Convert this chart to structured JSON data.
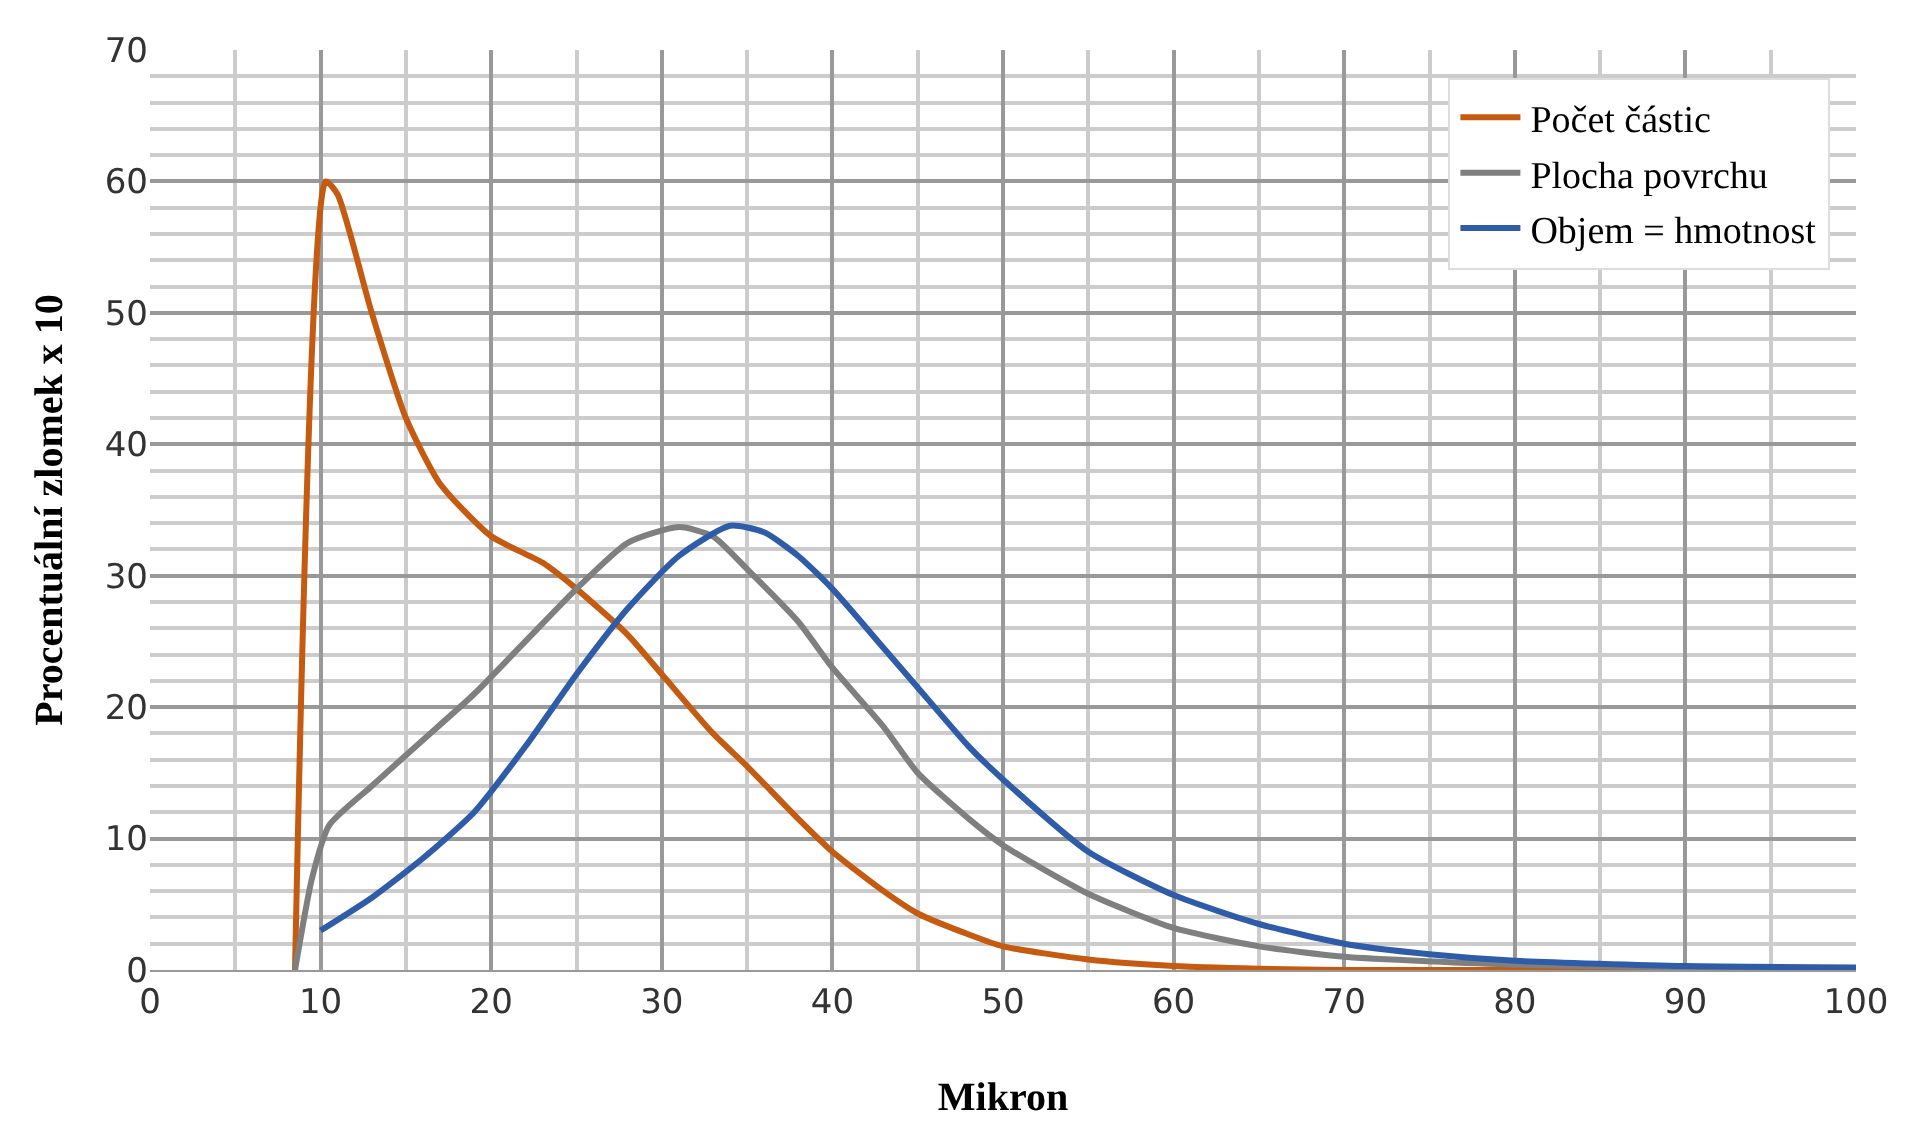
{
  "chart_data": {
    "type": "line",
    "xlabel": "Mikron",
    "ylabel": "Procentuální zlomek x 10",
    "xlim": [
      0,
      100
    ],
    "xticks": [
      0,
      10,
      20,
      30,
      40,
      50,
      60,
      70,
      80,
      90,
      100
    ],
    "ylim": [
      0,
      70
    ],
    "yticks": [
      0,
      10,
      20,
      30,
      40,
      50,
      60,
      70
    ],
    "grid": true,
    "legend": "top right",
    "marker": "none",
    "line_style": "solid",
    "series": [
      {
        "name": "Počet částic",
        "color": "#c55a11",
        "x": [
          8.5,
          10.3,
          11,
          13,
          15,
          17,
          20,
          23,
          25,
          28,
          30,
          33,
          35,
          38,
          40,
          43,
          45,
          48,
          50,
          55,
          60,
          65,
          70,
          80,
          96
        ],
        "values": [
          0,
          60,
          59,
          50,
          42,
          37,
          33,
          31,
          29,
          25.5,
          22.5,
          18,
          15.5,
          11.5,
          9,
          6,
          4.3,
          2.7,
          1.8,
          0.8,
          0.3,
          0.1,
          0,
          0,
          0
        ]
      },
      {
        "name": "Plocha povrchu",
        "color": "#7f7f7f",
        "x": [
          8.5,
          9.5,
          10.5,
          13,
          16,
          19,
          22,
          25,
          28,
          31,
          33,
          35,
          38,
          40,
          43,
          45,
          48,
          50,
          55,
          60,
          65,
          70,
          80,
          90,
          100
        ],
        "values": [
          0,
          7,
          11,
          14,
          17.5,
          21,
          25,
          29,
          32.5,
          33.7,
          33,
          30.5,
          26.5,
          23,
          18.5,
          15,
          11.5,
          9.5,
          5.8,
          3.2,
          1.8,
          1,
          0.4,
          0.2,
          0.1
        ]
      },
      {
        "name": "Objem = hmotnost",
        "color": "#2e5ca8",
        "x": [
          10,
          13,
          16,
          19,
          22,
          25,
          28,
          31,
          34,
          36,
          38,
          40,
          43,
          45,
          48,
          50,
          55,
          60,
          65,
          70,
          75,
          80,
          90,
          100
        ],
        "values": [
          3,
          5.5,
          8.5,
          12,
          17,
          22.5,
          27.5,
          31.5,
          33.8,
          33.3,
          31.5,
          29,
          24.5,
          21.5,
          17,
          14.5,
          9,
          5.7,
          3.5,
          2,
          1.2,
          0.7,
          0.3,
          0.2
        ]
      }
    ]
  }
}
